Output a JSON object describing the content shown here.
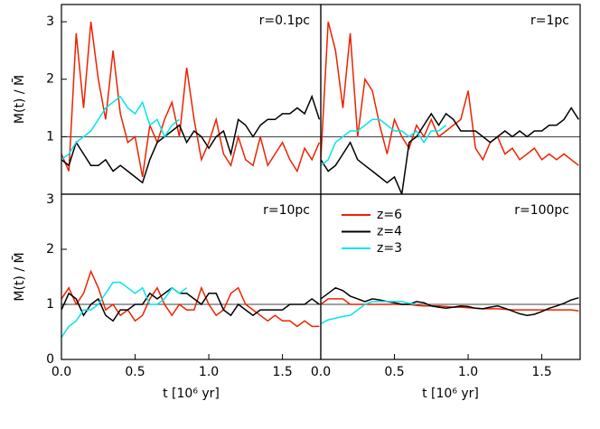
{
  "chart_data": [
    {
      "type": "line",
      "annotation": "r=0.1pc",
      "ylabel": "M(t) / M̄",
      "ylim": [
        0,
        3.3
      ],
      "yticks": [
        1,
        2,
        3
      ],
      "xlim": [
        0,
        1.76
      ],
      "hline": 1,
      "x": [
        0,
        0.05,
        0.1,
        0.15,
        0.2,
        0.25,
        0.3,
        0.35,
        0.4,
        0.45,
        0.5,
        0.55,
        0.6,
        0.65,
        0.7,
        0.75,
        0.8,
        0.85,
        0.9,
        0.95,
        1.0,
        1.05,
        1.1,
        1.15,
        1.2,
        1.25,
        1.3,
        1.35,
        1.4,
        1.45,
        1.5,
        1.55,
        1.6,
        1.65,
        1.7,
        1.75
      ],
      "series": [
        {
          "color": "#ee2200",
          "values": [
            0.7,
            0.4,
            2.8,
            1.5,
            3,
            2.0,
            1.3,
            2.5,
            1.4,
            0.9,
            1.0,
            0.3,
            1.2,
            0.9,
            1.3,
            1.6,
            1.0,
            2.2,
            1.3,
            0.6,
            0.9,
            1.3,
            0.7,
            0.5,
            1.0,
            0.6,
            0.5,
            1.0,
            0.5,
            0.7,
            0.9,
            0.6,
            0.4,
            0.8,
            0.6,
            0.9
          ]
        },
        {
          "color": "#000000",
          "values": [
            0.6,
            0.5,
            0.9,
            0.7,
            0.5,
            0.5,
            0.6,
            0.4,
            0.5,
            0.4,
            0.3,
            0.2,
            0.6,
            0.9,
            1.0,
            1.1,
            1.2,
            0.9,
            1.1,
            1.0,
            0.8,
            1.0,
            1.1,
            0.7,
            1.3,
            1.2,
            1.0,
            1.2,
            1.3,
            1.3,
            1.4,
            1.4,
            1.5,
            1.4,
            1.7,
            1.3
          ]
        },
        {
          "color": "#00e5ee",
          "values": [
            0.6,
            0.7,
            0.9,
            1.0,
            1.1,
            1.3,
            1.5,
            1.6,
            1.7,
            1.5,
            1.4,
            1.6,
            1.2,
            1.3,
            1.0,
            1.2,
            1.3,
            null,
            null,
            null,
            null,
            null,
            null,
            null,
            null,
            null,
            null,
            null,
            null,
            null,
            null,
            null,
            null,
            null,
            null,
            null
          ]
        }
      ]
    },
    {
      "type": "line",
      "annotation": "r=1pc",
      "ylim": [
        0,
        3.3
      ],
      "xlim": [
        0,
        1.76
      ],
      "hline": 1,
      "x": [
        0,
        0.05,
        0.1,
        0.15,
        0.2,
        0.25,
        0.3,
        0.35,
        0.4,
        0.45,
        0.5,
        0.55,
        0.6,
        0.65,
        0.7,
        0.75,
        0.8,
        0.85,
        0.9,
        0.95,
        1.0,
        1.05,
        1.1,
        1.15,
        1.2,
        1.25,
        1.3,
        1.35,
        1.4,
        1.45,
        1.5,
        1.55,
        1.6,
        1.65,
        1.7,
        1.75
      ],
      "series": [
        {
          "color": "#ee2200",
          "values": [
            0.6,
            3.0,
            2.5,
            1.5,
            2.8,
            1.0,
            2.0,
            1.8,
            1.2,
            0.7,
            1.3,
            1.0,
            0.8,
            1.2,
            1.0,
            1.3,
            1.0,
            1.1,
            1.2,
            1.3,
            1.8,
            0.8,
            0.6,
            0.9,
            1.0,
            0.7,
            0.8,
            0.6,
            0.7,
            0.8,
            0.6,
            0.7,
            0.6,
            0.7,
            0.6,
            0.5
          ]
        },
        {
          "color": "#000000",
          "values": [
            0.6,
            0.4,
            0.5,
            0.7,
            0.9,
            0.6,
            0.5,
            0.4,
            0.3,
            0.2,
            0.3,
            0.0,
            0.9,
            1.0,
            1.2,
            1.4,
            1.2,
            1.4,
            1.3,
            1.1,
            1.1,
            1.1,
            1.0,
            0.9,
            1.0,
            1.1,
            1.0,
            1.1,
            1.0,
            1.1,
            1.1,
            1.2,
            1.2,
            1.3,
            1.5,
            1.3
          ]
        },
        {
          "color": "#00e5ee",
          "values": [
            0.5,
            0.6,
            0.9,
            1.0,
            1.1,
            1.1,
            1.2,
            1.3,
            1.3,
            1.2,
            1.1,
            1.1,
            1.0,
            1.1,
            0.9,
            1.1,
            1.1,
            1.2,
            null,
            null,
            null,
            null,
            null,
            null,
            null,
            null,
            null,
            null,
            null,
            null,
            null,
            null,
            null,
            null,
            null,
            null
          ]
        }
      ]
    },
    {
      "type": "line",
      "annotation": "r=10pc",
      "ylabel": "M(t) / M̄",
      "xlabel": "t [10⁶ yr]",
      "ylim": [
        0,
        3
      ],
      "yticks": [
        0,
        1,
        2,
        3
      ],
      "xlim": [
        0,
        1.76
      ],
      "xticks": [
        {
          "value": 0,
          "label": "0.0"
        },
        0.5,
        {
          "value": 1,
          "label": "1.0"
        },
        1.5
      ],
      "hline": 1,
      "x": [
        0,
        0.05,
        0.1,
        0.15,
        0.2,
        0.25,
        0.3,
        0.35,
        0.4,
        0.45,
        0.5,
        0.55,
        0.6,
        0.65,
        0.7,
        0.75,
        0.8,
        0.85,
        0.9,
        0.95,
        1.0,
        1.05,
        1.1,
        1.15,
        1.2,
        1.25,
        1.3,
        1.35,
        1.4,
        1.45,
        1.5,
        1.55,
        1.6,
        1.65,
        1.7,
        1.75
      ],
      "series": [
        {
          "color": "#ee2200",
          "values": [
            1.1,
            1.3,
            1.0,
            1.2,
            1.6,
            1.3,
            0.9,
            1.0,
            0.8,
            0.9,
            0.7,
            0.8,
            1.1,
            1.3,
            1.0,
            0.8,
            1.0,
            0.9,
            0.9,
            1.3,
            1.0,
            0.8,
            0.9,
            1.2,
            1.3,
            1.0,
            0.9,
            0.8,
            0.7,
            0.8,
            0.7,
            0.7,
            0.6,
            0.7,
            0.6,
            0.6
          ]
        },
        {
          "color": "#000000",
          "values": [
            0.9,
            1.2,
            1.1,
            0.8,
            1.0,
            1.1,
            0.8,
            0.7,
            0.9,
            0.9,
            1.0,
            1.0,
            1.2,
            1.1,
            1.2,
            1.3,
            1.2,
            1.2,
            1.1,
            1.0,
            1.2,
            1.2,
            0.9,
            0.8,
            1.0,
            0.9,
            0.8,
            0.9,
            0.9,
            0.9,
            0.9,
            1.0,
            1.0,
            1.0,
            1.1,
            1.0
          ]
        },
        {
          "color": "#00e5ee",
          "values": [
            0.4,
            0.6,
            0.7,
            0.9,
            0.9,
            1.0,
            1.2,
            1.4,
            1.4,
            1.3,
            1.2,
            1.3,
            1.0,
            1.0,
            1.1,
            1.3,
            1.2,
            1.3,
            null,
            null,
            null,
            null,
            null,
            null,
            null,
            null,
            null,
            null,
            null,
            null,
            null,
            null,
            null,
            null,
            null,
            null
          ]
        }
      ]
    },
    {
      "type": "line",
      "annotation": "r=100pc",
      "xlabel": "t [10⁶ yr]",
      "ylim": [
        0,
        3
      ],
      "xlim": [
        0,
        1.76
      ],
      "xticks": [
        {
          "value": 0,
          "label": "0.0"
        },
        0.5,
        {
          "value": 1,
          "label": "1.0"
        },
        1.5
      ],
      "hline": 1,
      "legend": "upper left",
      "x": [
        0,
        0.05,
        0.1,
        0.15,
        0.2,
        0.25,
        0.3,
        0.35,
        0.4,
        0.45,
        0.5,
        0.55,
        0.6,
        0.65,
        0.7,
        0.75,
        0.8,
        0.85,
        0.9,
        0.95,
        1.0,
        1.05,
        1.1,
        1.15,
        1.2,
        1.25,
        1.3,
        1.35,
        1.4,
        1.45,
        1.5,
        1.55,
        1.6,
        1.65,
        1.7,
        1.75
      ],
      "series": [
        {
          "name": "z=6",
          "color": "#ee2200",
          "values": [
            1.0,
            1.1,
            1.1,
            1.1,
            1.0,
            1.0,
            1.0,
            1.0,
            1.0,
            1.0,
            1.0,
            1.0,
            1.0,
            0.98,
            0.97,
            0.97,
            0.97,
            0.96,
            0.95,
            0.95,
            0.94,
            0.93,
            0.92,
            0.92,
            0.92,
            0.91,
            0.9,
            0.9,
            0.9,
            0.9,
            0.9,
            0.9,
            0.9,
            0.9,
            0.9,
            0.88
          ]
        },
        {
          "name": "z=4",
          "color": "#000000",
          "values": [
            1.1,
            1.2,
            1.3,
            1.25,
            1.15,
            1.1,
            1.05,
            1.1,
            1.08,
            1.05,
            1.03,
            1.0,
            1.0,
            1.05,
            1.03,
            0.97,
            0.95,
            0.93,
            0.95,
            0.97,
            0.96,
            0.93,
            0.92,
            0.95,
            0.97,
            0.93,
            0.88,
            0.83,
            0.8,
            0.82,
            0.87,
            0.93,
            0.97,
            1.02,
            1.08,
            1.12
          ]
        },
        {
          "name": "z=3",
          "color": "#00e5ee",
          "values": [
            0.65,
            0.72,
            0.75,
            0.78,
            0.8,
            0.9,
            1.0,
            1.05,
            1.05,
            1.05,
            1.05,
            1.05,
            1.02,
            1.0,
            null,
            null,
            null,
            null,
            null,
            null,
            null,
            null,
            null,
            null,
            null,
            null,
            null,
            null,
            null,
            null,
            null,
            null,
            null,
            null,
            null,
            null
          ]
        }
      ]
    }
  ]
}
